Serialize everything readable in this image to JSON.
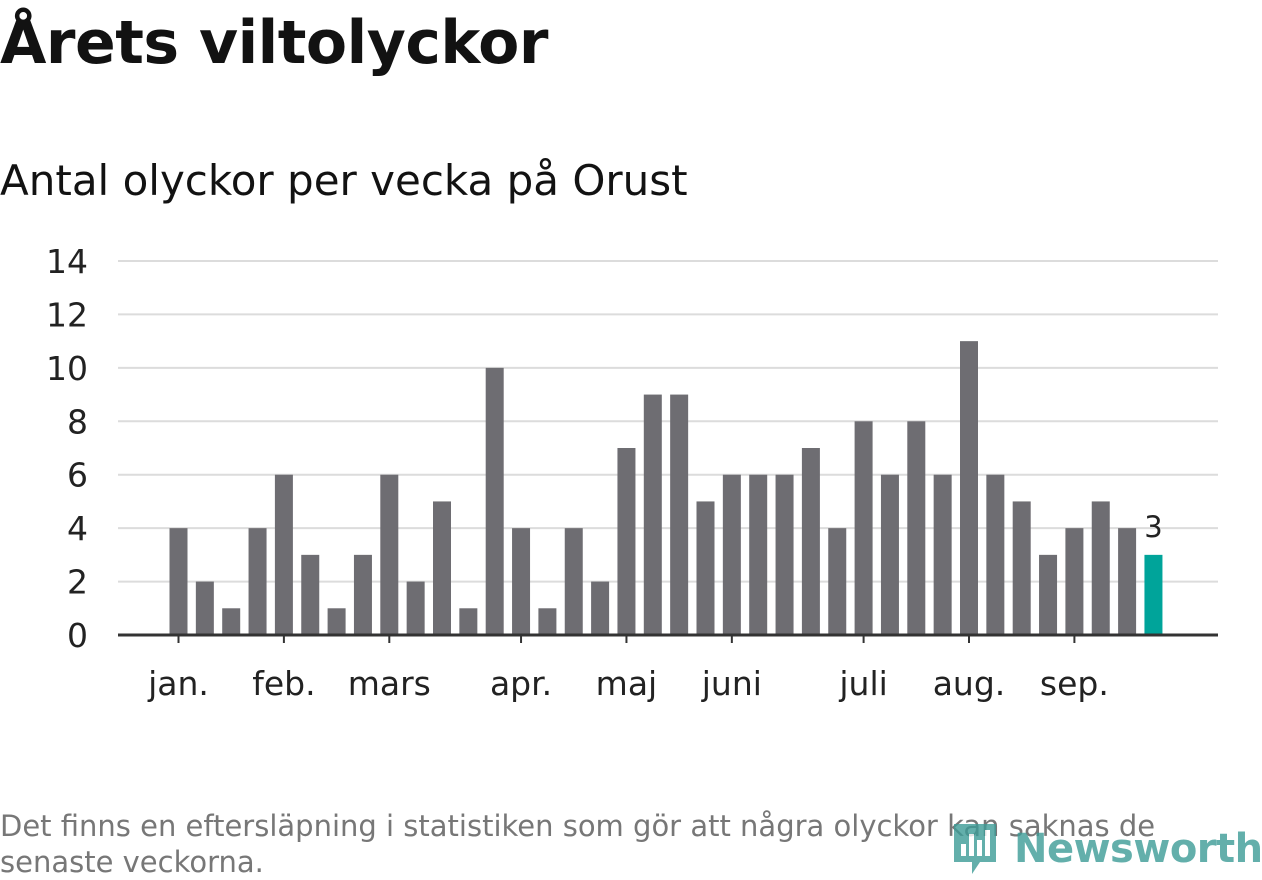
{
  "header": {
    "title": "Årets viltolyckor",
    "subtitle": "Antal olyckor per vecka på Orust"
  },
  "footer": {
    "note": "Det finns en eftersläpning i statistiken som gör att några olyckor kan saknas de senaste veckorna.",
    "brand": "Newsworthy"
  },
  "colors": {
    "bar": "#6e6d72",
    "highlight": "#00a49a",
    "grid": "#dcdcdc",
    "axis": "#333333",
    "text": "#222222",
    "brand": "#3d9c97"
  },
  "chart_data": {
    "type": "bar",
    "title": "Antal olyckor per vecka på Orust",
    "xlabel": "",
    "ylabel": "",
    "ylim": [
      0,
      14
    ],
    "yticks": [
      0,
      2,
      4,
      6,
      8,
      10,
      12,
      14
    ],
    "grid": true,
    "weeks": [
      1,
      2,
      3,
      4,
      5,
      6,
      7,
      8,
      9,
      10,
      11,
      12,
      13,
      14,
      15,
      16,
      17,
      18,
      19,
      20,
      21,
      22,
      23,
      24,
      25,
      26,
      27,
      28,
      29,
      30,
      31,
      32,
      33,
      34,
      35,
      36,
      37,
      38
    ],
    "values": [
      4,
      2,
      1,
      4,
      6,
      3,
      1,
      3,
      6,
      2,
      5,
      1,
      10,
      4,
      1,
      4,
      2,
      7,
      9,
      9,
      5,
      6,
      6,
      6,
      7,
      4,
      8,
      6,
      8,
      6,
      11,
      6,
      5,
      3,
      4,
      5,
      4,
      3
    ],
    "highlight_index": 37,
    "highlight_label": "3",
    "month_labels": [
      {
        "label": "jan.",
        "week_index": 0
      },
      {
        "label": "feb.",
        "week_index": 4
      },
      {
        "label": "mars",
        "week_index": 8
      },
      {
        "label": "apr.",
        "week_index": 13
      },
      {
        "label": "maj",
        "week_index": 17
      },
      {
        "label": "juni",
        "week_index": 21
      },
      {
        "label": "juli",
        "week_index": 26
      },
      {
        "label": "aug.",
        "week_index": 30
      },
      {
        "label": "sep.",
        "week_index": 34
      }
    ]
  }
}
